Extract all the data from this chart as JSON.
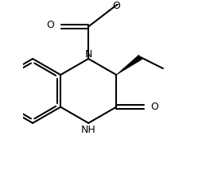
{
  "bg_color": "#ffffff",
  "line_color": "#000000",
  "line_width": 1.5,
  "label_fontsize": 9,
  "fig_width": 2.54,
  "fig_height": 2.24,
  "dpi": 100,
  "xlim": [
    -1.5,
    5.5
  ],
  "ylim": [
    -3.5,
    3.5
  ]
}
